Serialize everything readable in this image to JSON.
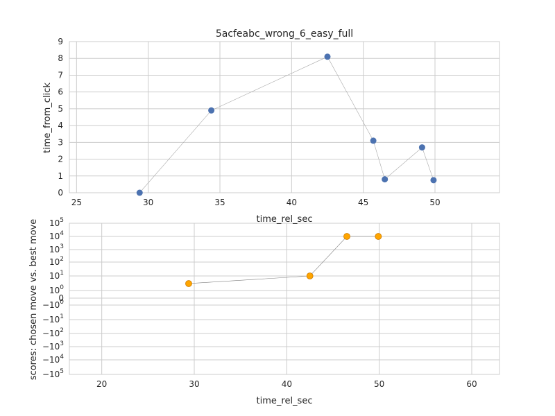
{
  "chart_data": [
    {
      "type": "scatter",
      "title": "5acfeabc_wrong_6_easy_full",
      "xlabel": "time_rel_sec",
      "ylabel": "time_from_click",
      "xlim": [
        24.5,
        54.5
      ],
      "ylim": [
        0,
        9
      ],
      "xticks": [
        "25",
        "30",
        "35",
        "40",
        "45",
        "50"
      ],
      "yticks": [
        "0",
        "1",
        "2",
        "3",
        "4",
        "5",
        "6",
        "7",
        "8",
        "9"
      ],
      "grid": true,
      "marker_color": "#4c72b0",
      "line_color": "#a8a8a8",
      "series": [
        {
          "x": [
            29.4,
            34.4,
            42.5,
            45.7,
            46.5,
            49.1,
            49.9
          ],
          "y": [
            0.0,
            4.9,
            8.1,
            3.1,
            0.8,
            2.7,
            0.75
          ]
        }
      ]
    },
    {
      "type": "scatter",
      "xlabel": "time_rel_sec",
      "ylabel": "scores: chosen move vs. best move",
      "yscale": "symlog",
      "xlim": [
        16.5,
        63
      ],
      "ylim": [
        -100000,
        100000
      ],
      "xticks": [
        "20",
        "30",
        "40",
        "50",
        "60"
      ],
      "yticks": [
        {
          "base": "10",
          "exp": "5",
          "value": 100000
        },
        {
          "base": "10",
          "exp": "4",
          "value": 10000
        },
        {
          "base": "10",
          "exp": "3",
          "value": 1000
        },
        {
          "base": "10",
          "exp": "2",
          "value": 100
        },
        {
          "base": "10",
          "exp": "1",
          "value": 10
        },
        {
          "base": "10",
          "exp": "0",
          "value": 1
        },
        {
          "base": "0",
          "exp": "",
          "value": 0
        },
        {
          "base": "−10",
          "exp": "0",
          "value": -1
        },
        {
          "base": "−10",
          "exp": "1",
          "value": -10
        },
        {
          "base": "−10",
          "exp": "2",
          "value": -100
        },
        {
          "base": "−10",
          "exp": "3",
          "value": -1000
        },
        {
          "base": "−10",
          "exp": "4",
          "value": -10000
        },
        {
          "base": "−10",
          "exp": "5",
          "value": -100000
        }
      ],
      "grid": true,
      "marker_color": "#ffa500",
      "marker_edge_color": "#cc7a00",
      "line_color": "#7f7f7f",
      "series": [
        {
          "x": [
            29.4,
            42.5,
            46.5,
            49.9
          ],
          "y": [
            3,
            10,
            10000,
            10000
          ]
        }
      ]
    }
  ]
}
